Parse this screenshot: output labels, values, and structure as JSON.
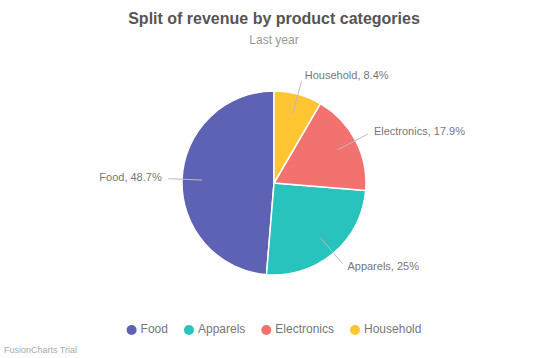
{
  "chart_data": {
    "type": "pie",
    "title": "Split of revenue by product categories",
    "subtitle": "Last year",
    "annotations": [
      "FusionCharts Trial"
    ],
    "categories": [
      "Food",
      "Apparels",
      "Electronics",
      "Household"
    ],
    "values": [
      48.7,
      25.0,
      17.9,
      8.4
    ],
    "colors": [
      "#5d62b5",
      "#29c3be",
      "#f2726f",
      "#ffc533"
    ],
    "data_labels": true,
    "value_labels": [
      "Food, 48.7%",
      "Apparels, 25%",
      "Electronics, 17.9%",
      "Household, 8.4%"
    ],
    "legend": "bottom"
  }
}
